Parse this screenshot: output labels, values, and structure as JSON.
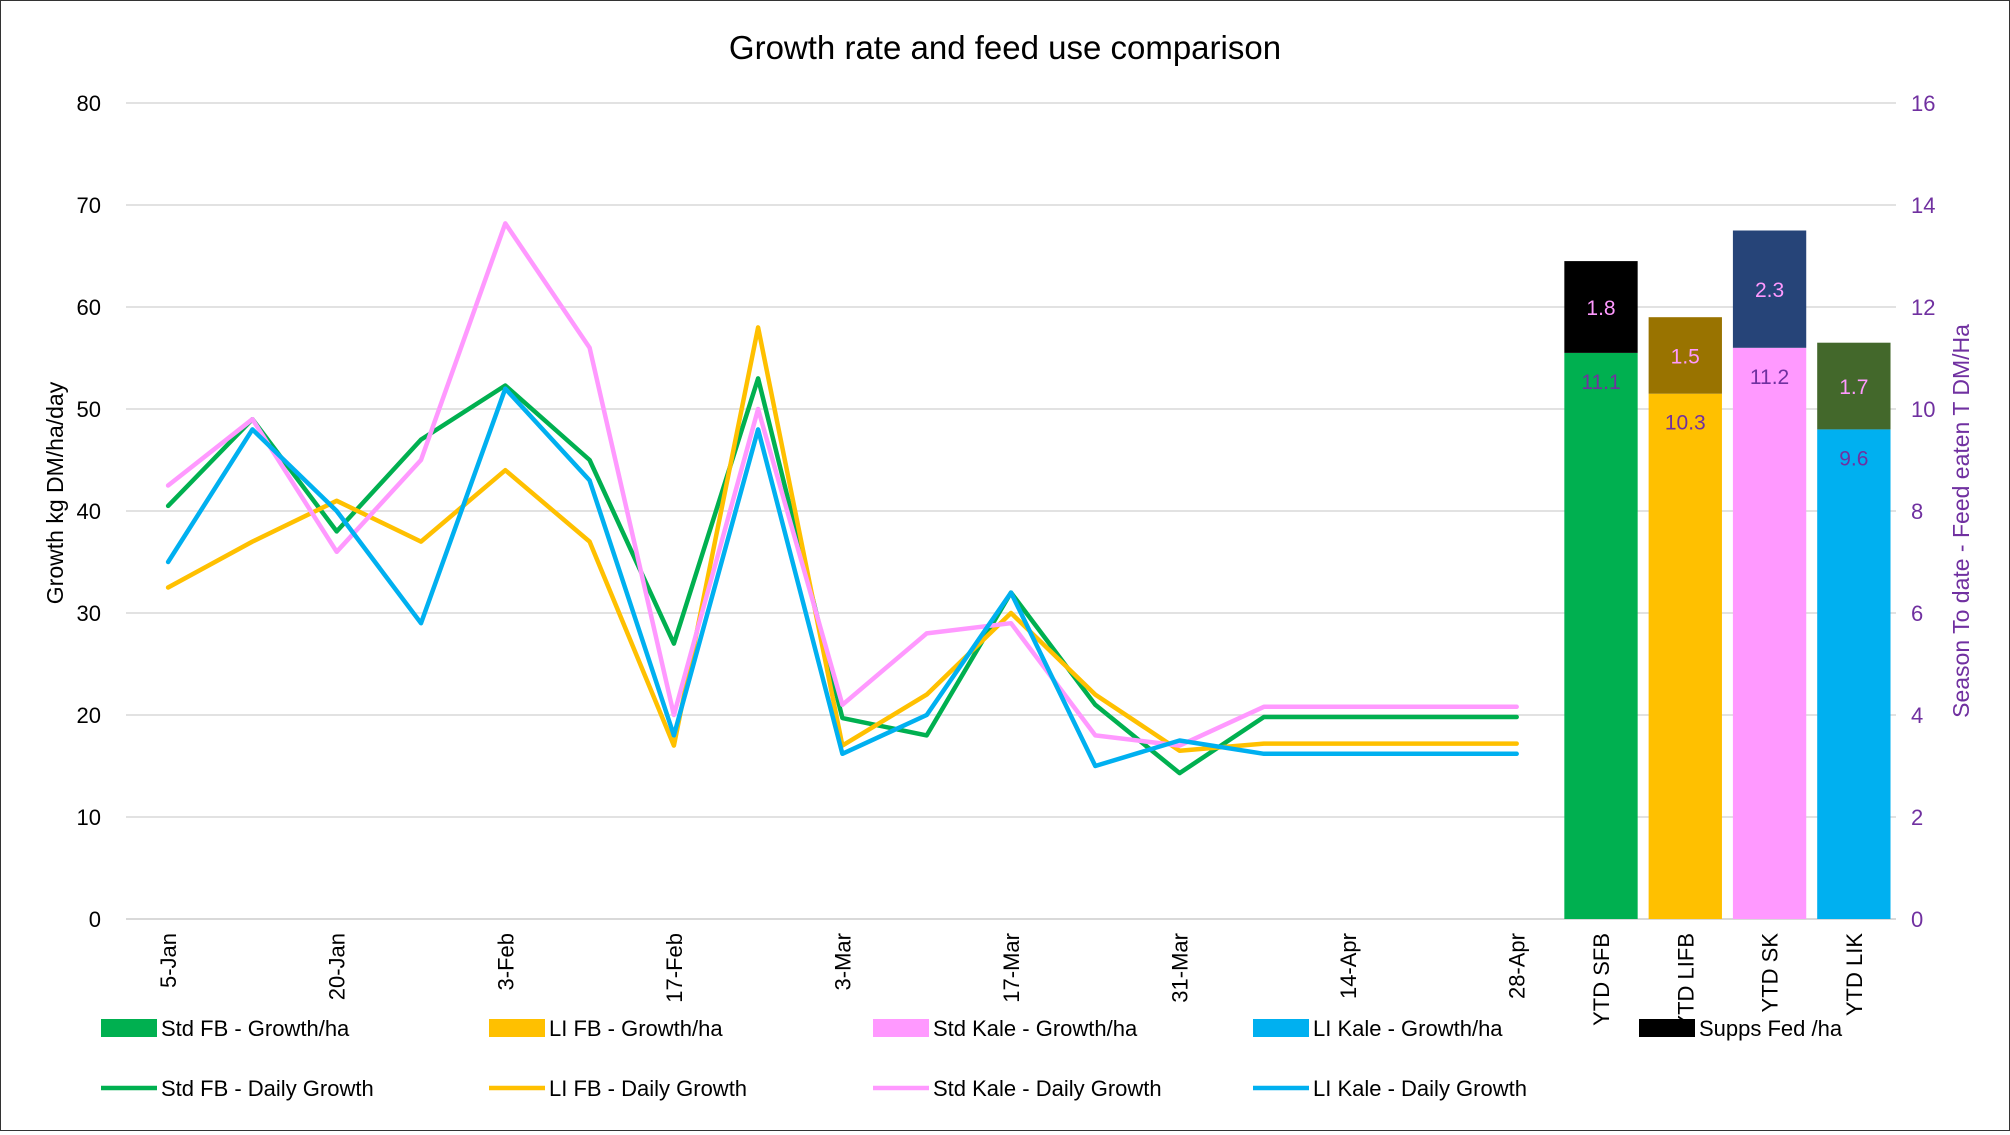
{
  "chart_data": {
    "type": "line",
    "title": "Growth rate and feed use comparison",
    "ylabel": "Growth kg DM/ha/day",
    "y2label": "Season To date - Feed eaten T DM/Ha",
    "ylim": [
      0,
      80
    ],
    "y2lim": [
      0,
      16
    ],
    "yticks": [
      "0",
      "10",
      "20",
      "30",
      "40",
      "50",
      "60",
      "70",
      "80"
    ],
    "y2ticks": [
      "0",
      "2",
      "4",
      "6",
      "8",
      "10",
      "12",
      "14",
      "16"
    ],
    "grid": true,
    "legend_position": "bottom",
    "x_dates": [
      "5-Jan",
      "12-Jan",
      "20-Jan",
      "27-Jan",
      "3-Feb",
      "10-Feb",
      "17-Feb",
      "24-Feb",
      "3-Mar",
      "10-Mar",
      "17-Mar",
      "24-Mar",
      "31-Mar",
      "7-Apr",
      "14-Apr",
      "21-Apr",
      "28-Apr"
    ],
    "x_tick_labels": [
      "5-Jan",
      "20-Jan",
      "3-Feb",
      "17-Feb",
      "3-Mar",
      "17-Mar",
      "31-Mar",
      "14-Apr",
      "28-Apr"
    ],
    "line_series": [
      {
        "name": "Std FB - Daily Growth",
        "color": "#00B050",
        "values": [
          40.5,
          49,
          38,
          47,
          52.3,
          45,
          27,
          53,
          19.7,
          18,
          32,
          21,
          14.3,
          19.8,
          19.8,
          19.8,
          19.8
        ]
      },
      {
        "name": "LI FB - Daily Growth",
        "color": "#FFC000",
        "values": [
          32.5,
          37,
          41,
          37,
          44,
          37,
          17,
          58,
          17,
          22,
          30,
          22,
          16.5,
          17.2,
          17.2,
          17.2,
          17.2
        ]
      },
      {
        "name": "Std Kale - Daily Growth",
        "color": "#FF99FF",
        "values": [
          42.5,
          49,
          36,
          45,
          68.2,
          56,
          20,
          50,
          21,
          28,
          29,
          18,
          17,
          20.8,
          20.8,
          20.8,
          20.8
        ]
      },
      {
        "name": "LI Kale - Daily Growth",
        "color": "#00B0F0",
        "values": [
          35,
          48,
          40,
          29,
          52,
          43,
          18,
          48,
          16.2,
          20,
          32,
          15,
          17.5,
          16.2,
          16.2,
          16.2,
          16.2
        ]
      }
    ],
    "bar_categories": [
      "YTD SFB",
      "YTD LIFB",
      "YTD SK",
      "YTD LIK"
    ],
    "bars": [
      {
        "category": "YTD SFB",
        "growth": 11.1,
        "supps": 1.8,
        "growth_color": "#00B050",
        "supps_color": "#000000",
        "growth_label_color": "#7030A0",
        "supps_label_color": "#FF99FF"
      },
      {
        "category": "YTD LIFB",
        "growth": 10.3,
        "supps": 1.5,
        "growth_color": "#FFC000",
        "supps_color": "#997300",
        "growth_label_color": "#7030A0",
        "supps_label_color": "#FF99FF"
      },
      {
        "category": "YTD SK",
        "growth": 11.2,
        "supps": 2.3,
        "growth_color": "#FF99FF",
        "supps_color": "#264478",
        "growth_label_color": "#7030A0",
        "supps_label_color": "#FF99FF"
      },
      {
        "category": "YTD LIK",
        "growth": 9.6,
        "supps": 1.7,
        "growth_color": "#00B0F0",
        "supps_color": "#43682B",
        "growth_label_color": "#7030A0",
        "supps_label_color": "#FF99FF"
      }
    ],
    "growth_label_texts": [
      "11.1",
      "10.3",
      "11.2",
      "9.6"
    ],
    "supps_label_texts": [
      "1.8",
      "1.5",
      "2.3",
      "1.7"
    ],
    "legend": [
      {
        "label": "Std FB - Growth/ha",
        "kind": "box",
        "color": "#00B050"
      },
      {
        "label": "LI FB - Growth/ha",
        "kind": "box",
        "color": "#FFC000"
      },
      {
        "label": "Std Kale - Growth/ha",
        "kind": "box",
        "color": "#FF99FF"
      },
      {
        "label": "LI Kale - Growth/ha",
        "kind": "box",
        "color": "#00B0F0"
      },
      {
        "label": "Supps Fed /ha",
        "kind": "box",
        "color": "#000000"
      },
      {
        "label": "Std FB - Daily Growth",
        "kind": "line",
        "color": "#00B050"
      },
      {
        "label": "LI FB - Daily Growth",
        "kind": "line",
        "color": "#FFC000"
      },
      {
        "label": "Std Kale - Daily Growth",
        "kind": "line",
        "color": "#FF99FF"
      },
      {
        "label": "LI Kale - Daily Growth",
        "kind": "line",
        "color": "#00B0F0"
      }
    ],
    "colors": {
      "y2_axis_text": "#7030A0",
      "grid": "#D9D9D9",
      "text": "#000000"
    }
  }
}
